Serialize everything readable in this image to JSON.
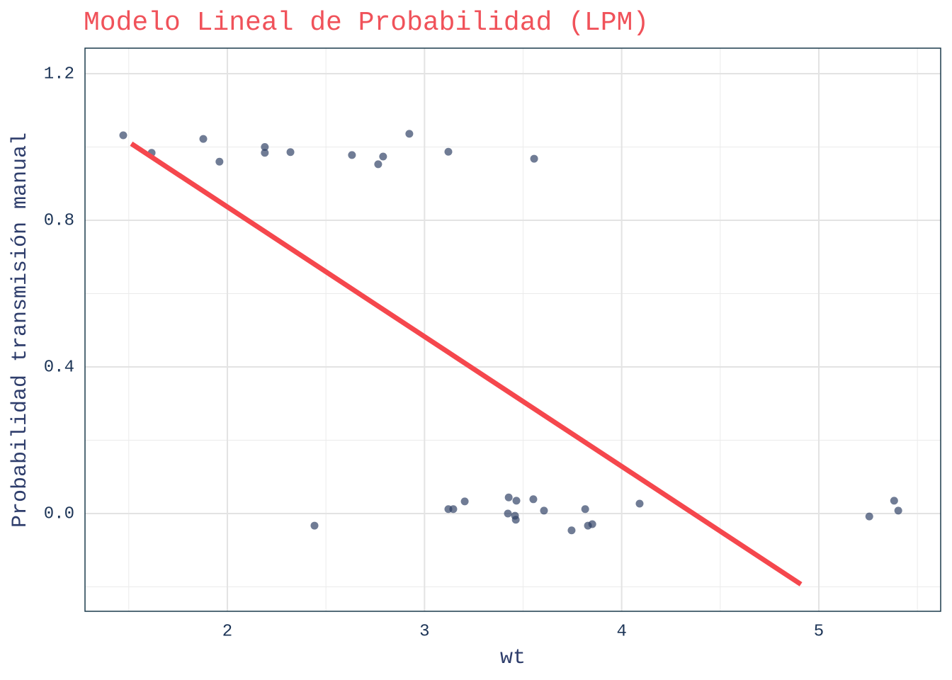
{
  "chart_data": {
    "type": "scatter",
    "title": "Modelo Lineal de Probabilidad (LPM)",
    "x_label": "wt",
    "y_label": "Probabilidad transmisión manual",
    "x": [
      1.472,
      1.616,
      1.878,
      1.96,
      2.19,
      2.19,
      2.32,
      2.632,
      2.765,
      2.79,
      2.923,
      3.121,
      3.556,
      2.442,
      3.121,
      3.146,
      3.204,
      3.427,
      3.423,
      3.466,
      3.459,
      3.463,
      3.552,
      3.606,
      3.746,
      3.815,
      3.829,
      3.851,
      4.091,
      5.256,
      5.382,
      5.403
    ],
    "y": [
      1.032,
      0.984,
      1.022,
      0.96,
      1.0,
      0.984,
      0.986,
      0.978,
      0.953,
      0.974,
      1.036,
      0.987,
      0.968,
      -0.033,
      0.012,
      0.012,
      0.033,
      0.044,
      0.0,
      0.035,
      -0.006,
      -0.017,
      0.039,
      0.008,
      -0.046,
      0.012,
      -0.033,
      -0.029,
      0.027,
      -0.008,
      0.035,
      0.008
    ],
    "color": "#2c3e63",
    "line": {
      "x": [
        1.513,
        4.909
      ],
      "y": [
        1.009,
        -0.193
      ],
      "color": "#f5474d"
    },
    "xlim": [
      1.278,
      5.618
    ],
    "ylim": [
      -0.2667,
      1.2696
    ],
    "xticks": [
      2,
      3,
      4,
      5
    ],
    "yticks": [
      {
        "value": 0,
        "label": "0.0"
      },
      {
        "value": 0.4,
        "label": "0.4"
      },
      {
        "value": 0.8,
        "label": "0.8"
      },
      {
        "value": 1.2,
        "label": "1.2"
      }
    ],
    "xminorticks": [
      1.5,
      2.5,
      3.5,
      4.5,
      5.5
    ],
    "yminorticks": [
      -0.2,
      0.2,
      0.6,
      1.0
    ],
    "grid": true
  }
}
